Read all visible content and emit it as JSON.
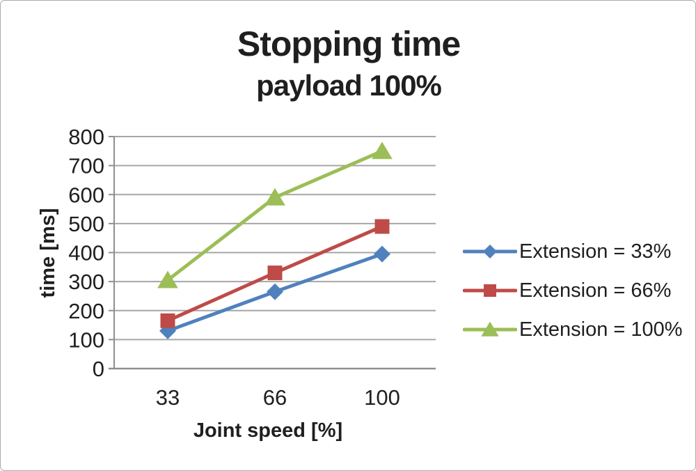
{
  "window": {
    "background": "#ffffff",
    "border_color": "#a9a9a9"
  },
  "chart_data": {
    "type": "line",
    "title": "Stopping time",
    "subtitle": "payload 100%",
    "xlabel": "Joint speed [%]",
    "ylabel": "time [ms]",
    "categories": [
      "33",
      "66",
      "100"
    ],
    "series": [
      {
        "name": "Extension = 33%",
        "marker": "diamond",
        "color": "#4F81BD",
        "values": [
          130,
          265,
          395
        ]
      },
      {
        "name": "Extension = 66%",
        "marker": "square",
        "color": "#BE4B48",
        "values": [
          165,
          330,
          490
        ]
      },
      {
        "name": "Extension = 100%",
        "marker": "triangle",
        "color": "#9CBE56",
        "values": [
          305,
          590,
          750
        ]
      }
    ],
    "ylim": [
      0,
      800
    ],
    "yticks": [
      0,
      100,
      200,
      300,
      400,
      500,
      600,
      700,
      800
    ],
    "grid": "horizontal",
    "legend_position": "right",
    "grid_color": "#a6a6a6",
    "axis_color": "#8f8f8f",
    "text_color": "#1f1f1f"
  }
}
